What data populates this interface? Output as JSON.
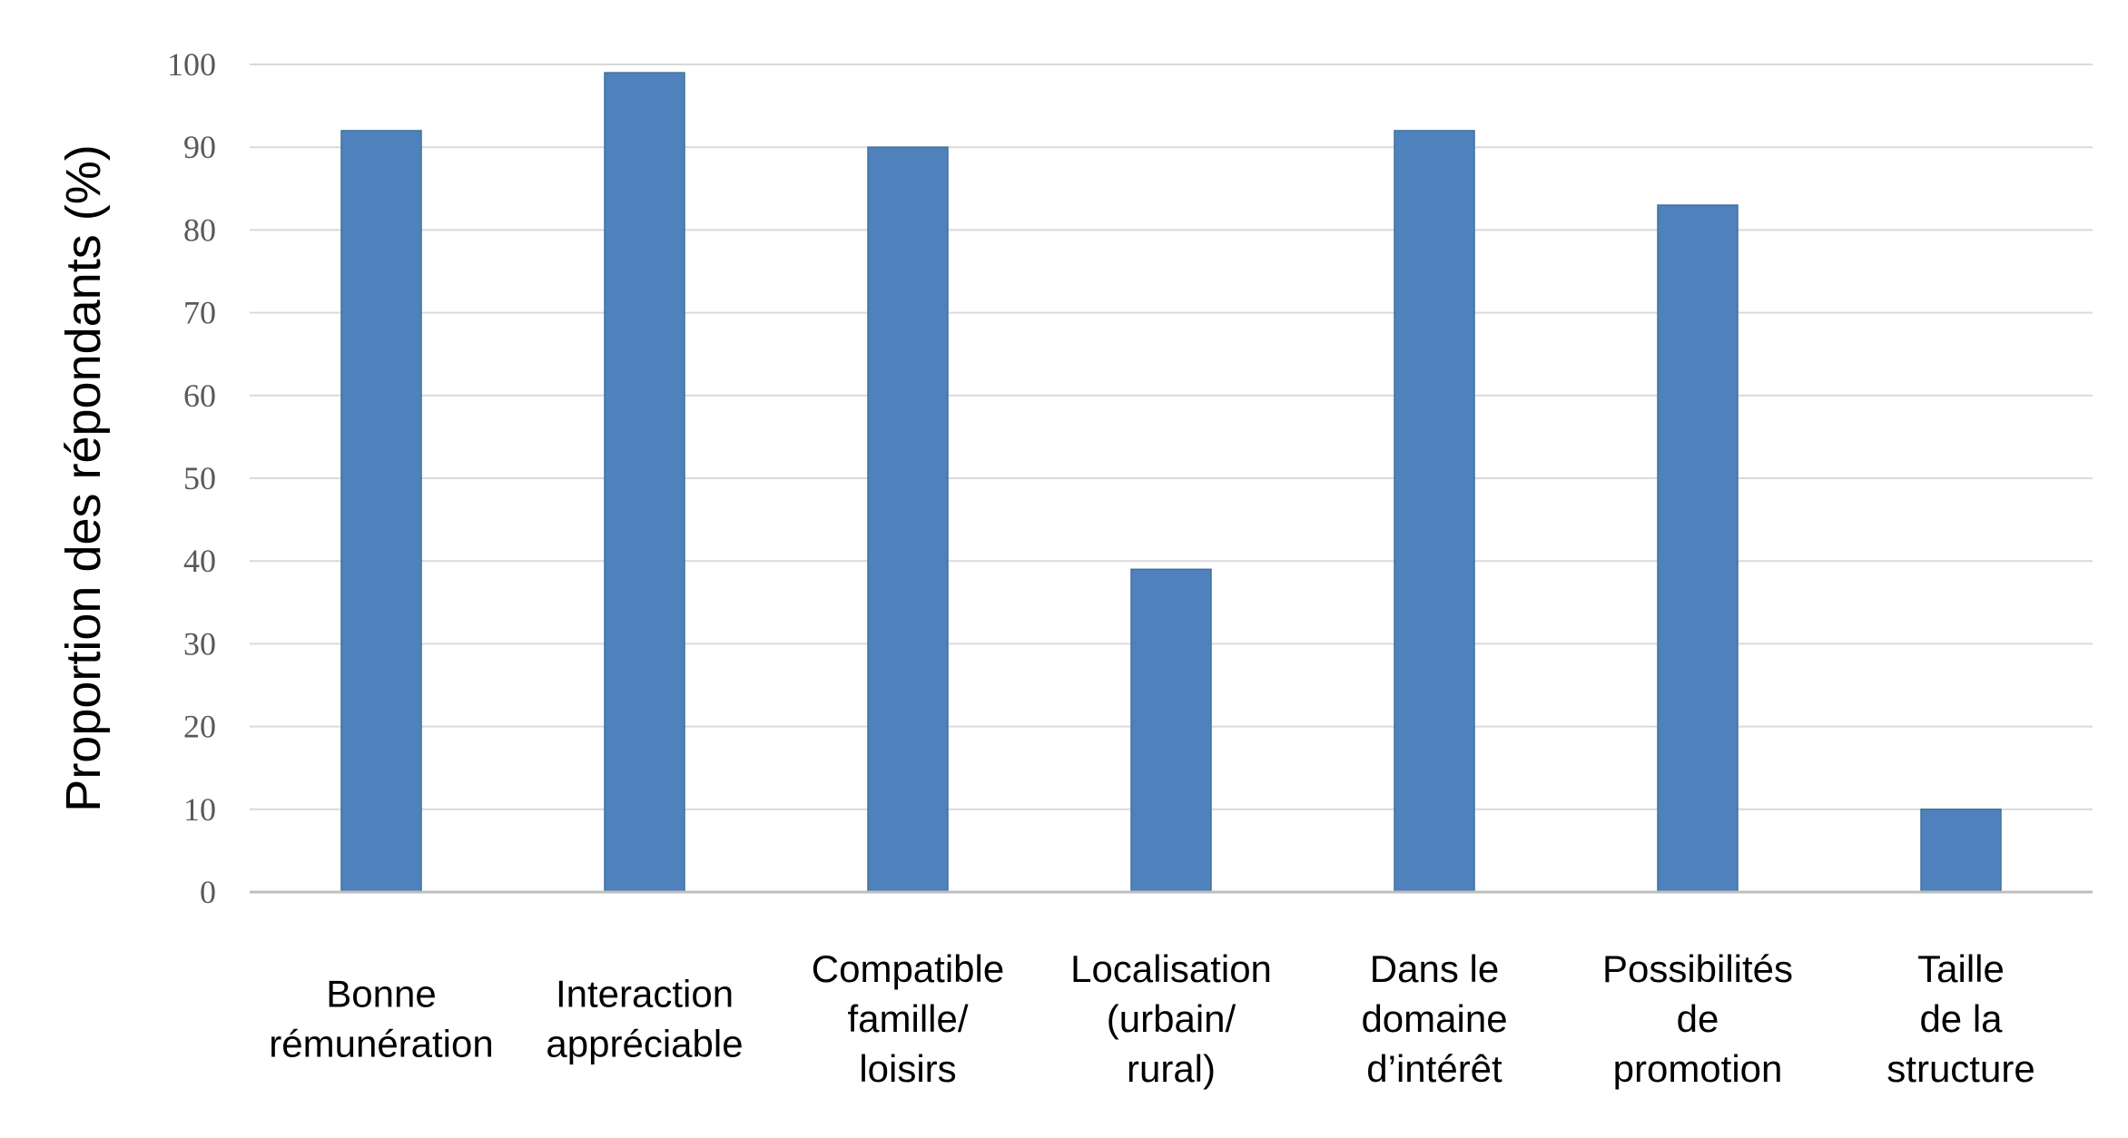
{
  "chart_data": {
    "type": "bar",
    "title": "",
    "xlabel": "",
    "ylabel": "Proportion des répondants (%)",
    "ylim": [
      0,
      100
    ],
    "yticks": [
      0,
      10,
      20,
      30,
      40,
      50,
      60,
      70,
      80,
      90,
      100
    ],
    "grid": true,
    "legend": "none",
    "categories": [
      [
        "Bonne",
        "rémunération"
      ],
      [
        "Interaction",
        "appréciable"
      ],
      [
        "Compatible",
        "famille/",
        "loisirs"
      ],
      [
        "Localisation",
        "(urbain/",
        "rural)"
      ],
      [
        "Dans le",
        "domaine",
        "d’intérêt"
      ],
      [
        "Possibilités",
        "de",
        "promotion"
      ],
      [
        "Taille",
        "de la",
        "structure"
      ]
    ],
    "values": [
      92,
      99,
      90,
      39,
      92,
      83,
      10
    ],
    "colors": {
      "bar": "#4f81bd",
      "bar_edge": "#41719c",
      "grid": "#d9d9d9",
      "axis": "#bfbfbf"
    }
  }
}
